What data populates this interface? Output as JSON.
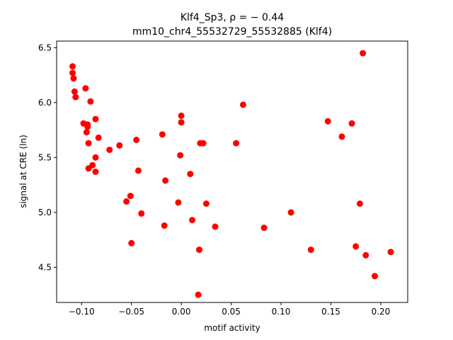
{
  "chart_data": {
    "type": "scatter",
    "title_line1": "Klf4_Sp3, ρ = − 0.44",
    "title_line2": "mm10_chr4_55532729_55532885 (Klf4)",
    "xlabel": "motif activity",
    "ylabel": "signal at CRE (ln)",
    "xlim": [
      -0.125,
      0.227
    ],
    "ylim": [
      4.18,
      6.56
    ],
    "xticks": [
      -0.1,
      -0.05,
      0.0,
      0.05,
      0.1,
      0.15,
      0.2
    ],
    "xtick_labels": [
      "−0.10",
      "−0.05",
      "0.00",
      "0.05",
      "0.10",
      "0.15",
      "0.20"
    ],
    "yticks": [
      4.5,
      5.0,
      5.5,
      6.0,
      6.5
    ],
    "ytick_labels": [
      "4.5",
      "5.0",
      "5.5",
      "6.0",
      "6.5"
    ],
    "grid": false,
    "marker_color": "#ff0000",
    "points": [
      {
        "x": -0.109,
        "y": 6.33
      },
      {
        "x": -0.109,
        "y": 6.27
      },
      {
        "x": -0.108,
        "y": 6.22
      },
      {
        "x": -0.107,
        "y": 6.1
      },
      {
        "x": -0.106,
        "y": 6.05
      },
      {
        "x": -0.096,
        "y": 6.13
      },
      {
        "x": -0.091,
        "y": 6.01
      },
      {
        "x": -0.098,
        "y": 5.81
      },
      {
        "x": -0.094,
        "y": 5.8
      },
      {
        "x": -0.094,
        "y": 5.78
      },
      {
        "x": -0.095,
        "y": 5.73
      },
      {
        "x": -0.086,
        "y": 5.85
      },
      {
        "x": -0.093,
        "y": 5.63
      },
      {
        "x": -0.083,
        "y": 5.68
      },
      {
        "x": -0.086,
        "y": 5.5
      },
      {
        "x": -0.089,
        "y": 5.43
      },
      {
        "x": -0.093,
        "y": 5.4
      },
      {
        "x": -0.086,
        "y": 5.37
      },
      {
        "x": -0.072,
        "y": 5.57
      },
      {
        "x": -0.062,
        "y": 5.61
      },
      {
        "x": -0.045,
        "y": 5.66
      },
      {
        "x": -0.043,
        "y": 5.38
      },
      {
        "x": -0.051,
        "y": 5.15
      },
      {
        "x": -0.055,
        "y": 5.1
      },
      {
        "x": -0.04,
        "y": 4.99
      },
      {
        "x": -0.05,
        "y": 4.72
      },
      {
        "x": -0.019,
        "y": 5.71
      },
      {
        "x": -0.016,
        "y": 5.29
      },
      {
        "x": -0.017,
        "y": 4.88
      },
      {
        "x": 0.0,
        "y": 5.88
      },
      {
        "x": 0.0,
        "y": 5.82
      },
      {
        "x": -0.001,
        "y": 5.52
      },
      {
        "x": -0.003,
        "y": 5.09
      },
      {
        "x": 0.009,
        "y": 5.35
      },
      {
        "x": 0.011,
        "y": 4.93
      },
      {
        "x": 0.019,
        "y": 5.63
      },
      {
        "x": 0.022,
        "y": 5.63
      },
      {
        "x": 0.025,
        "y": 5.08
      },
      {
        "x": 0.018,
        "y": 4.66
      },
      {
        "x": 0.017,
        "y": 4.25
      },
      {
        "x": 0.034,
        "y": 4.87
      },
      {
        "x": 0.055,
        "y": 5.63
      },
      {
        "x": 0.062,
        "y": 5.98
      },
      {
        "x": 0.083,
        "y": 4.86
      },
      {
        "x": 0.11,
        "y": 5.0
      },
      {
        "x": 0.13,
        "y": 4.66
      },
      {
        "x": 0.147,
        "y": 5.83
      },
      {
        "x": 0.161,
        "y": 5.69
      },
      {
        "x": 0.171,
        "y": 5.81
      },
      {
        "x": 0.175,
        "y": 4.69
      },
      {
        "x": 0.179,
        "y": 5.08
      },
      {
        "x": 0.185,
        "y": 4.61
      },
      {
        "x": 0.182,
        "y": 6.45
      },
      {
        "x": 0.194,
        "y": 4.42
      },
      {
        "x": 0.21,
        "y": 4.64
      }
    ]
  }
}
